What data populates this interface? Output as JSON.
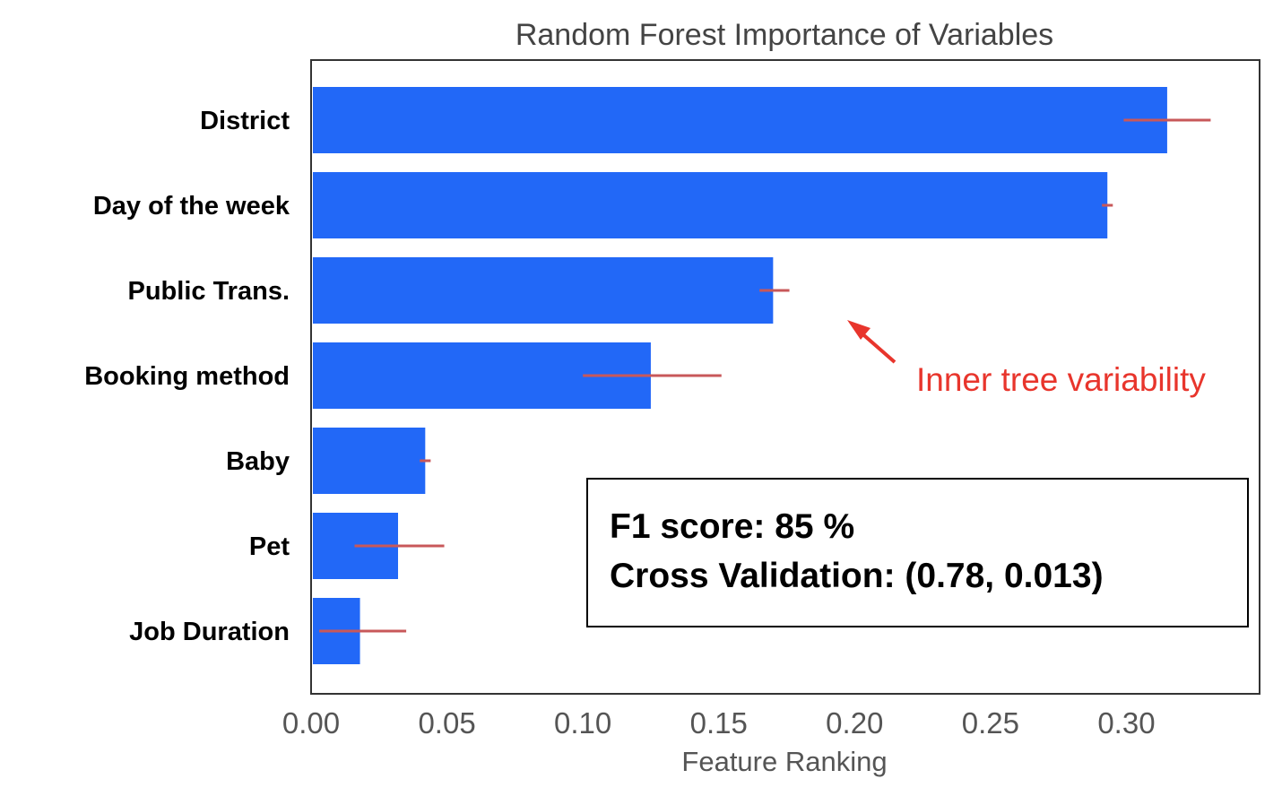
{
  "chart_data": {
    "type": "bar",
    "orientation": "horizontal",
    "title": "Random Forest Importance of Variables",
    "xlabel": "Feature Ranking",
    "ylabel": "",
    "xlim": [
      0.0,
      0.349
    ],
    "xticks": [
      "0.00",
      "0.05",
      "0.10",
      "0.15",
      "0.20",
      "0.25",
      "0.30"
    ],
    "grid": false,
    "categories": [
      "District",
      "Day of the week",
      "Public Trans.",
      "Booking method",
      "Baby",
      "Pet",
      "Job Duration"
    ],
    "values": [
      0.315,
      0.293,
      0.17,
      0.125,
      0.042,
      0.032,
      0.018
    ],
    "error_low": [
      0.299,
      0.291,
      0.165,
      0.1,
      0.04,
      0.016,
      0.003
    ],
    "error_high": [
      0.331,
      0.295,
      0.176,
      0.151,
      0.044,
      0.049,
      0.035
    ],
    "bar_color": "#2268f7",
    "error_color": "#c8585a"
  },
  "annotation": {
    "text": "Inner tree variability",
    "color": "#e8352c"
  },
  "score_box": {
    "line1": "F1 score: 85 %",
    "line2": "Cross Validation: (0.78, 0.013)"
  }
}
